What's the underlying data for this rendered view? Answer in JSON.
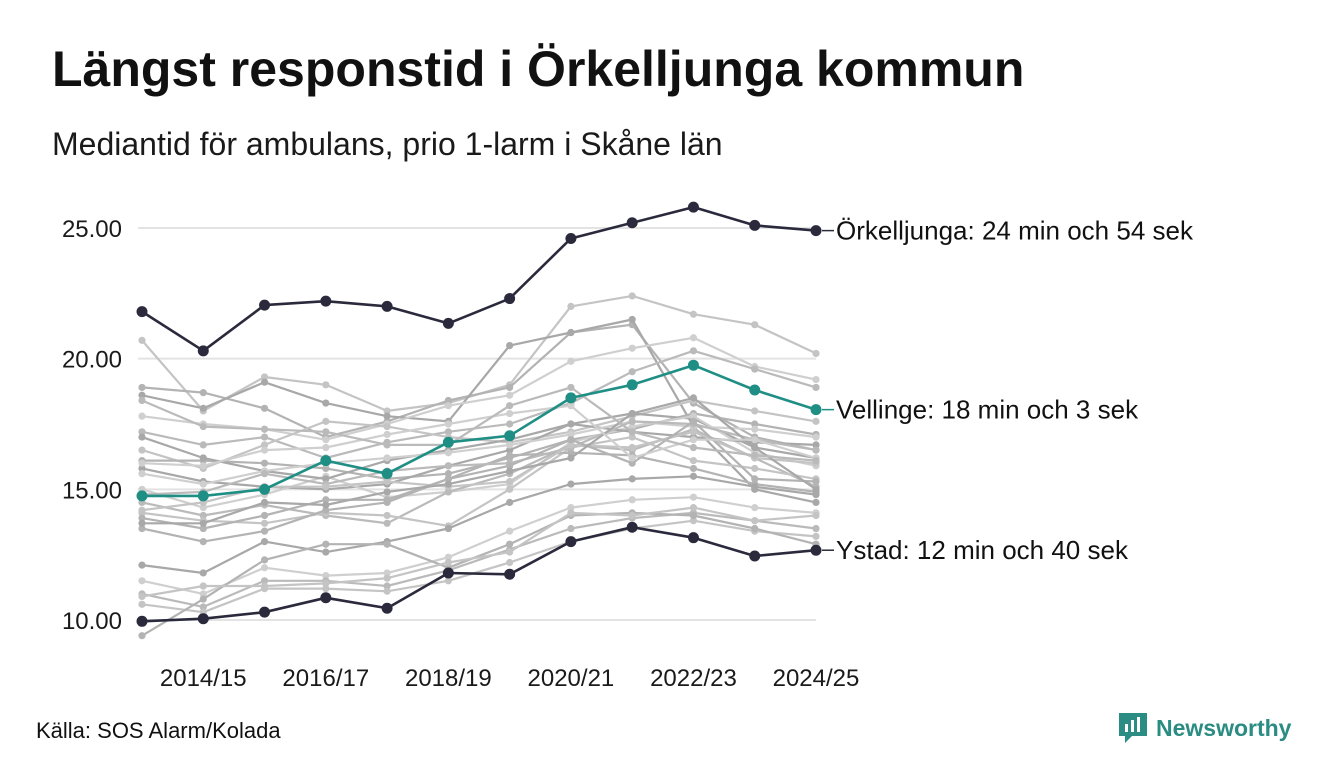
{
  "header": {
    "title": "Längst responstid i Örkelljunga kommun",
    "subtitle": "Mediantid för ambulans, prio 1-larm i Skåne län"
  },
  "footer": {
    "source": "Källa: SOS Alarm/Kolada",
    "brand": "Newsworthy",
    "brand_icon": "newsworthy-logo-icon"
  },
  "colors": {
    "background": "#ffffff",
    "grid": "#e3e3e3",
    "background_lines": "#b9b9b9",
    "highlight_dark": "#2b2a3c",
    "highlight_teal": "#1f8f85",
    "brand": "#2a8c82"
  },
  "chart_data": {
    "type": "line",
    "title": "Längst responstid i Örkelljunga kommun",
    "subtitle": "Mediantid för ambulans, prio 1-larm i Skåne län",
    "xlabel": "",
    "ylabel": "",
    "x": [
      "2013/14",
      "2014/15",
      "2015/16",
      "2016/17",
      "2017/18",
      "2018/19",
      "2019/20",
      "2020/21",
      "2021/22",
      "2022/23",
      "2023/24",
      "2024/25"
    ],
    "x_tick_labels": [
      "2014/15",
      "2016/17",
      "2018/19",
      "2020/21",
      "2022/23",
      "2024/25"
    ],
    "ylim": [
      9.5,
      26.5
    ],
    "y_ticks": [
      10,
      15,
      20,
      25
    ],
    "y_tick_labels": [
      "10.00",
      "15.00",
      "20.00",
      "25.00"
    ],
    "grid": true,
    "highlighted_series": [
      {
        "name": "Örkelljunga",
        "label": "Örkelljunga: 24 min och 54 sek",
        "color": "#2b2a3c",
        "values": [
          21.8,
          20.3,
          22.05,
          22.2,
          22.0,
          21.35,
          22.3,
          24.6,
          25.2,
          25.8,
          25.1,
          24.9
        ]
      },
      {
        "name": "Vellinge",
        "label": "Vellinge: 18 min och 3 sek",
        "color": "#1f8f85",
        "values": [
          14.75,
          14.75,
          15.0,
          16.1,
          15.6,
          16.8,
          17.05,
          18.5,
          19.0,
          19.75,
          18.8,
          18.05
        ]
      },
      {
        "name": "Ystad",
        "label": "Ystad: 12 min och 40 sek",
        "color": "#2b2a3c",
        "values": [
          9.95,
          10.05,
          10.3,
          10.85,
          10.45,
          11.8,
          11.75,
          13.0,
          13.55,
          13.15,
          12.45,
          12.67
        ]
      }
    ],
    "other_series": [
      [
        20.7,
        18.0,
        19.3,
        19.0,
        18.0,
        18.3,
        19.0,
        22.0,
        22.4,
        21.7,
        21.3,
        20.2
      ],
      [
        18.9,
        18.7,
        18.1,
        17.0,
        17.6,
        18.4,
        18.9,
        21.0,
        21.3,
        18.3,
        17.0,
        16.5
      ],
      [
        18.6,
        18.1,
        19.1,
        18.3,
        17.8,
        17.6,
        20.5,
        21.0,
        21.5,
        17.4,
        15.0,
        14.5
      ],
      [
        17.8,
        17.5,
        17.3,
        16.9,
        17.5,
        18.2,
        18.6,
        19.9,
        20.4,
        20.8,
        19.7,
        19.2
      ],
      [
        17.2,
        16.7,
        17.0,
        16.2,
        16.8,
        17.2,
        17.5,
        18.3,
        19.5,
        20.3,
        19.6,
        18.9
      ],
      [
        16.5,
        15.8,
        16.7,
        17.6,
        17.4,
        17.0,
        16.8,
        17.2,
        17.8,
        18.4,
        18.0,
        17.6
      ],
      [
        16.1,
        16.1,
        16.0,
        15.8,
        15.4,
        15.6,
        16.2,
        16.9,
        17.3,
        17.9,
        17.5,
        17.1
      ],
      [
        15.8,
        15.3,
        15.1,
        15.0,
        15.2,
        15.9,
        16.5,
        17.5,
        17.9,
        17.7,
        16.6,
        16.2
      ],
      [
        15.0,
        14.3,
        14.8,
        15.5,
        14.7,
        14.9,
        15.2,
        16.8,
        17.4,
        17.8,
        16.4,
        15.9
      ],
      [
        14.5,
        14.0,
        14.4,
        14.0,
        13.7,
        14.9,
        15.6,
        16.7,
        16.5,
        17.3,
        16.2,
        15.1
      ],
      [
        14.1,
        13.8,
        13.7,
        14.1,
        14.0,
        13.6,
        15.0,
        16.6,
        17.0,
        16.1,
        15.8,
        15.4
      ],
      [
        13.5,
        13.0,
        13.4,
        14.2,
        14.5,
        15.4,
        16.3,
        16.4,
        16.3,
        15.8,
        15.2,
        14.9
      ],
      [
        12.1,
        11.8,
        13.0,
        12.6,
        13.0,
        13.5,
        14.5,
        15.2,
        15.4,
        15.5,
        15.1,
        14.8
      ],
      [
        11.5,
        11.0,
        12.0,
        11.7,
        11.8,
        12.4,
        13.4,
        14.3,
        14.6,
        14.7,
        14.3,
        14.1
      ],
      [
        11.0,
        10.5,
        11.5,
        11.5,
        11.3,
        11.9,
        12.7,
        13.5,
        13.9,
        14.1,
        13.8,
        13.5
      ],
      [
        10.6,
        10.3,
        11.2,
        11.2,
        11.1,
        11.5,
        12.2,
        13.0,
        13.5,
        13.8,
        13.4,
        13.2
      ],
      [
        9.4,
        10.8,
        12.3,
        12.9,
        12.9,
        12.0,
        12.9,
        14.0,
        14.1,
        14.0,
        13.5,
        12.9
      ],
      [
        17.0,
        16.2,
        15.7,
        15.4,
        16.1,
        16.5,
        16.9,
        17.5,
        17.2,
        17.0,
        16.8,
        16.7
      ],
      [
        15.6,
        15.2,
        15.7,
        16.0,
        16.2,
        16.4,
        16.7,
        17.1,
        17.6,
        17.4,
        17.3,
        17.0
      ],
      [
        14.8,
        14.9,
        15.6,
        15.2,
        15.7,
        15.9,
        16.0,
        16.6,
        17.6,
        17.5,
        16.9,
        16.5
      ],
      [
        14.2,
        14.5,
        15.1,
        15.1,
        15.3,
        15.1,
        15.3,
        16.7,
        16.6,
        17.2,
        16.2,
        16.0
      ],
      [
        13.9,
        13.5,
        14.0,
        14.6,
        14.6,
        15.4,
        15.9,
        16.9,
        16.0,
        17.6,
        15.4,
        15.3
      ],
      [
        13.7,
        13.7,
        14.5,
        14.4,
        14.9,
        15.2,
        15.7,
        16.2,
        17.9,
        18.5,
        16.6,
        15.0
      ],
      [
        16.0,
        15.9,
        16.5,
        16.6,
        17.1,
        17.5,
        17.9,
        18.2,
        16.2,
        16.9,
        16.9,
        16.2
      ],
      [
        18.4,
        17.4,
        17.3,
        17.2,
        16.7,
        16.7,
        18.2,
        18.9,
        17.2,
        16.6,
        16.3,
        16.1
      ],
      [
        10.9,
        11.3,
        11.3,
        11.4,
        11.6,
        12.2,
        12.6,
        14.1,
        14.0,
        14.3,
        13.8,
        14.0
      ]
    ]
  }
}
